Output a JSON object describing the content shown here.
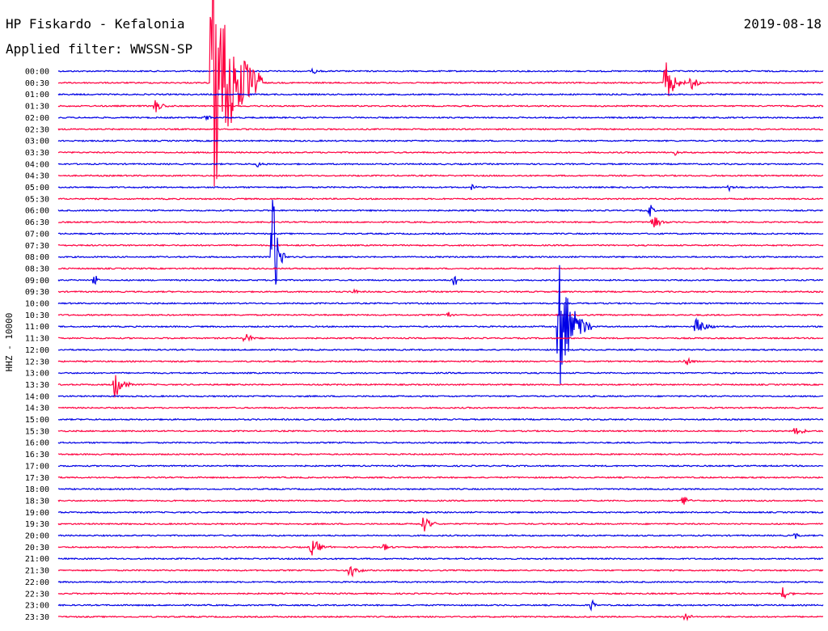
{
  "header": {
    "station": "HP Fiskardo - Kefalonia",
    "filter": "Applied filter: WWSSN-SP",
    "date": "2019-08-18"
  },
  "colors": {
    "even": "#0000e6",
    "odd": "#ff0040"
  },
  "chart_data": {
    "type": "line",
    "title": "HP Fiskardo - Kefalonia",
    "subtitle": "Applied filter: WWSSN-SP",
    "ylabel": "HHZ - 10000",
    "xlabel": "",
    "tick_labels": [
      "00:00",
      "00:30",
      "01:00",
      "01:30",
      "02:00",
      "02:30",
      "03:00",
      "03:30",
      "04:00",
      "04:30",
      "05:00",
      "05:30",
      "06:00",
      "06:30",
      "07:00",
      "07:30",
      "08:00",
      "08:30",
      "09:00",
      "09:30",
      "10:00",
      "10:30",
      "11:00",
      "11:30",
      "12:00",
      "12:30",
      "13:00",
      "13:30",
      "14:00",
      "14:30",
      "15:00",
      "15:30",
      "16:00",
      "16:30",
      "17:00",
      "17:30",
      "18:00",
      "18:30",
      "19:00",
      "19:30",
      "20:00",
      "20:30",
      "21:00",
      "21:30",
      "22:00",
      "22:30",
      "23:00",
      "23:30"
    ],
    "row_minutes": 30,
    "events": [
      {
        "row": 0,
        "minute": 10.0,
        "amp": 0.35,
        "dur": 0.4
      },
      {
        "row": 1,
        "minute": 6.0,
        "amp": 13.0,
        "dur": 2.0
      },
      {
        "row": 1,
        "minute": 23.8,
        "amp": 2.2,
        "dur": 0.8
      },
      {
        "row": 1,
        "minute": 24.8,
        "amp": 1.2,
        "dur": 0.5
      },
      {
        "row": 3,
        "minute": 3.8,
        "amp": 0.7,
        "dur": 0.6
      },
      {
        "row": 4,
        "minute": 5.8,
        "amp": 0.4,
        "dur": 0.4
      },
      {
        "row": 7,
        "minute": 24.2,
        "amp": 0.5,
        "dur": 0.3
      },
      {
        "row": 8,
        "minute": 7.8,
        "amp": 0.3,
        "dur": 0.4
      },
      {
        "row": 10,
        "minute": 16.2,
        "amp": 0.3,
        "dur": 0.3
      },
      {
        "row": 10,
        "minute": 26.3,
        "amp": 0.35,
        "dur": 0.4
      },
      {
        "row": 12,
        "minute": 23.2,
        "amp": 0.7,
        "dur": 0.3
      },
      {
        "row": 13,
        "minute": 23.3,
        "amp": 0.8,
        "dur": 0.7
      },
      {
        "row": 16,
        "minute": 8.4,
        "amp": 6.5,
        "dur": 0.5
      },
      {
        "row": 18,
        "minute": 1.4,
        "amp": 0.9,
        "dur": 0.3
      },
      {
        "row": 18,
        "minute": 15.5,
        "amp": 1.0,
        "dur": 0.4
      },
      {
        "row": 19,
        "minute": 11.6,
        "amp": 0.3,
        "dur": 0.3
      },
      {
        "row": 21,
        "minute": 15.3,
        "amp": 0.5,
        "dur": 0.3
      },
      {
        "row": 22,
        "minute": 19.6,
        "amp": 6.3,
        "dur": 1.3
      },
      {
        "row": 22,
        "minute": 25.0,
        "amp": 1.1,
        "dur": 0.8
      },
      {
        "row": 23,
        "minute": 7.3,
        "amp": 0.6,
        "dur": 0.8
      },
      {
        "row": 25,
        "minute": 24.6,
        "amp": 0.5,
        "dur": 0.5
      },
      {
        "row": 27,
        "minute": 2.2,
        "amp": 1.5,
        "dur": 0.7
      },
      {
        "row": 31,
        "minute": 28.9,
        "amp": 0.8,
        "dur": 0.6
      },
      {
        "row": 37,
        "minute": 24.5,
        "amp": 0.6,
        "dur": 0.5
      },
      {
        "row": 39,
        "minute": 14.3,
        "amp": 0.9,
        "dur": 0.7
      },
      {
        "row": 40,
        "minute": 28.9,
        "amp": 0.3,
        "dur": 0.4
      },
      {
        "row": 41,
        "minute": 9.9,
        "amp": 1.0,
        "dur": 0.8
      },
      {
        "row": 41,
        "minute": 12.8,
        "amp": 0.45,
        "dur": 0.4
      },
      {
        "row": 43,
        "minute": 11.4,
        "amp": 1.3,
        "dur": 0.6
      },
      {
        "row": 45,
        "minute": 28.4,
        "amp": 0.65,
        "dur": 0.6
      },
      {
        "row": 46,
        "minute": 20.9,
        "amp": 0.8,
        "dur": 0.3
      },
      {
        "row": 47,
        "minute": 24.6,
        "amp": 0.5,
        "dur": 0.4
      }
    ]
  }
}
